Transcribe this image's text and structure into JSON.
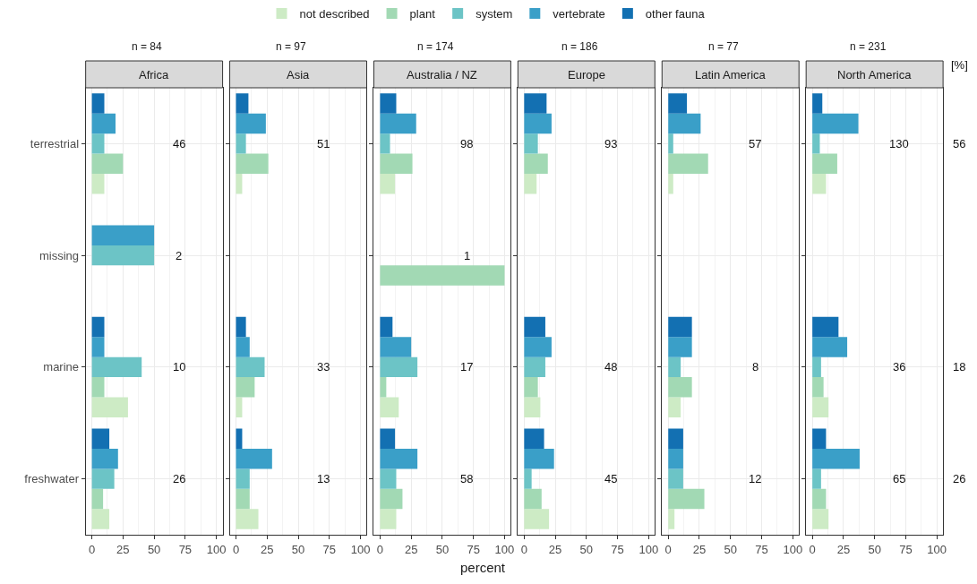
{
  "chart_data": [
    {
      "type": "bar",
      "orientation": "horizontal",
      "title": "Africa",
      "subtitle": "n = 84",
      "categories": [
        "terrestrial",
        "missing",
        "marine",
        "freshwater"
      ],
      "xlim": [
        -5,
        105
      ],
      "xticks": [
        0,
        25,
        50,
        75,
        100
      ],
      "grid": true,
      "legend": "top",
      "series": [
        {
          "name": "not described",
          "color": "#cdebc5",
          "values": [
            10,
            0,
            29,
            14
          ]
        },
        {
          "name": "plant",
          "color": "#a2d9b4",
          "values": [
            25,
            0,
            10,
            9
          ]
        },
        {
          "name": "system",
          "color": "#6cc4c6",
          "values": [
            10,
            50,
            40,
            18
          ]
        },
        {
          "name": "vertebrate",
          "color": "#3a9fc8",
          "values": [
            19,
            50,
            10,
            21
          ]
        },
        {
          "name": "other fauna",
          "color": "#1370b2",
          "values": [
            10,
            0,
            10,
            14
          ]
        }
      ],
      "annotations": [
        "46",
        "2",
        "10",
        "26"
      ]
    },
    {
      "type": "bar",
      "orientation": "horizontal",
      "title": "Asia",
      "subtitle": "n = 97",
      "categories": [
        "terrestrial",
        "missing",
        "marine",
        "freshwater"
      ],
      "xlim": [
        -5,
        105
      ],
      "xticks": [
        0,
        25,
        50,
        75,
        100
      ],
      "grid": true,
      "tick_labels": "x",
      "series": [
        {
          "color": "#cdebc5",
          "values": [
            5,
            0,
            5,
            18
          ]
        },
        {
          "color": "#a2d9b4",
          "values": [
            26,
            0,
            15,
            11
          ]
        },
        {
          "color": "#6cc4c6",
          "values": [
            8,
            0,
            23,
            11
          ]
        },
        {
          "color": "#3a9fc8",
          "values": [
            24,
            0,
            11,
            29
          ]
        },
        {
          "color": "#1370b2",
          "values": [
            10,
            0,
            8,
            5
          ]
        }
      ],
      "annotations": [
        "51",
        "33",
        "13"
      ]
    },
    {
      "type": "bar",
      "orientation": "horizontal",
      "title": "Australia / NZ",
      "subtitle": "n = 174",
      "xlabel": "percent",
      "categories": [
        "terrestrial",
        "missing",
        "marine",
        "freshwater"
      ],
      "xlim": [
        -5,
        105
      ],
      "xticks": [
        0,
        25,
        50,
        75,
        100
      ],
      "grid": true,
      "tick_labels": "x",
      "series": [
        {
          "color": "#cdebc5",
          "values": [
            12,
            0,
            15,
            13
          ]
        },
        {
          "color": "#a2d9b4",
          "values": [
            26,
            100,
            5,
            18
          ]
        },
        {
          "color": "#6cc4c6",
          "values": [
            8,
            0,
            30,
            13
          ]
        },
        {
          "color": "#3a9fc8",
          "values": [
            29,
            0,
            25,
            30
          ]
        },
        {
          "color": "#1370b2",
          "values": [
            13,
            0,
            10,
            12
          ]
        }
      ],
      "annotations": [
        "98",
        "1",
        "17",
        "58"
      ]
    },
    {
      "type": "bar",
      "orientation": "horizontal",
      "title": "Europe",
      "subtitle": "n = 186",
      "categories": [
        "terrestrial",
        "missing",
        "marine",
        "freshwater"
      ],
      "xlim": [
        -5,
        105
      ],
      "xticks": [
        0,
        25,
        50,
        75,
        100
      ],
      "grid": true,
      "tick_labels": "x",
      "series": [
        {
          "color": "#cdebc5",
          "values": [
            10,
            0,
            13,
            20
          ]
        },
        {
          "color": "#a2d9b4",
          "values": [
            19,
            0,
            11,
            14
          ]
        },
        {
          "color": "#6cc4c6",
          "values": [
            11,
            0,
            17,
            6
          ]
        },
        {
          "color": "#3a9fc8",
          "values": [
            22,
            0,
            22,
            24
          ]
        },
        {
          "color": "#1370b2",
          "values": [
            18,
            0,
            17,
            16
          ]
        }
      ],
      "annotations": [
        "93",
        "48",
        "45"
      ]
    },
    {
      "type": "bar",
      "orientation": "horizontal",
      "title": "Latin America",
      "subtitle": "n = 77",
      "categories": [
        "terrestrial",
        "missing",
        "marine",
        "freshwater"
      ],
      "xlim": [
        -5,
        105
      ],
      "xticks": [
        0,
        25,
        50,
        75,
        100
      ],
      "grid": true,
      "tick_labels": "x",
      "series": [
        {
          "color": "#cdebc5",
          "values": [
            4,
            0,
            10,
            5
          ]
        },
        {
          "color": "#a2d9b4",
          "values": [
            32,
            0,
            19,
            29
          ]
        },
        {
          "color": "#6cc4c6",
          "values": [
            4,
            0,
            10,
            12
          ]
        },
        {
          "color": "#3a9fc8",
          "values": [
            26,
            0,
            19,
            12
          ]
        },
        {
          "color": "#1370b2",
          "values": [
            15,
            0,
            19,
            12
          ]
        }
      ],
      "annotations": [
        "57",
        "8",
        "12"
      ]
    },
    {
      "type": "bar",
      "orientation": "horizontal",
      "title": "North America",
      "subtitle": "n = 231",
      "categories": [
        "terrestrial",
        "missing",
        "marine",
        "freshwater"
      ],
      "xlim": [
        -5,
        105
      ],
      "xticks": [
        0,
        25,
        50,
        75,
        100
      ],
      "grid": true,
      "tick_labels": "x",
      "series": [
        {
          "color": "#cdebc5",
          "values": [
            11,
            0,
            13,
            13
          ]
        },
        {
          "color": "#a2d9b4",
          "values": [
            20,
            0,
            9,
            11
          ]
        },
        {
          "color": "#6cc4c6",
          "values": [
            6,
            0,
            7,
            7
          ]
        },
        {
          "color": "#3a9fc8",
          "values": [
            37,
            0,
            28,
            38
          ]
        },
        {
          "color": "#1370b2",
          "values": [
            8,
            0,
            21,
            11
          ]
        }
      ],
      "annotations": [
        "130",
        "36",
        "65"
      ]
    },
    {
      "type": "other",
      "annotations": [
        "[%]",
        "56",
        "18",
        "26"
      ]
    }
  ]
}
